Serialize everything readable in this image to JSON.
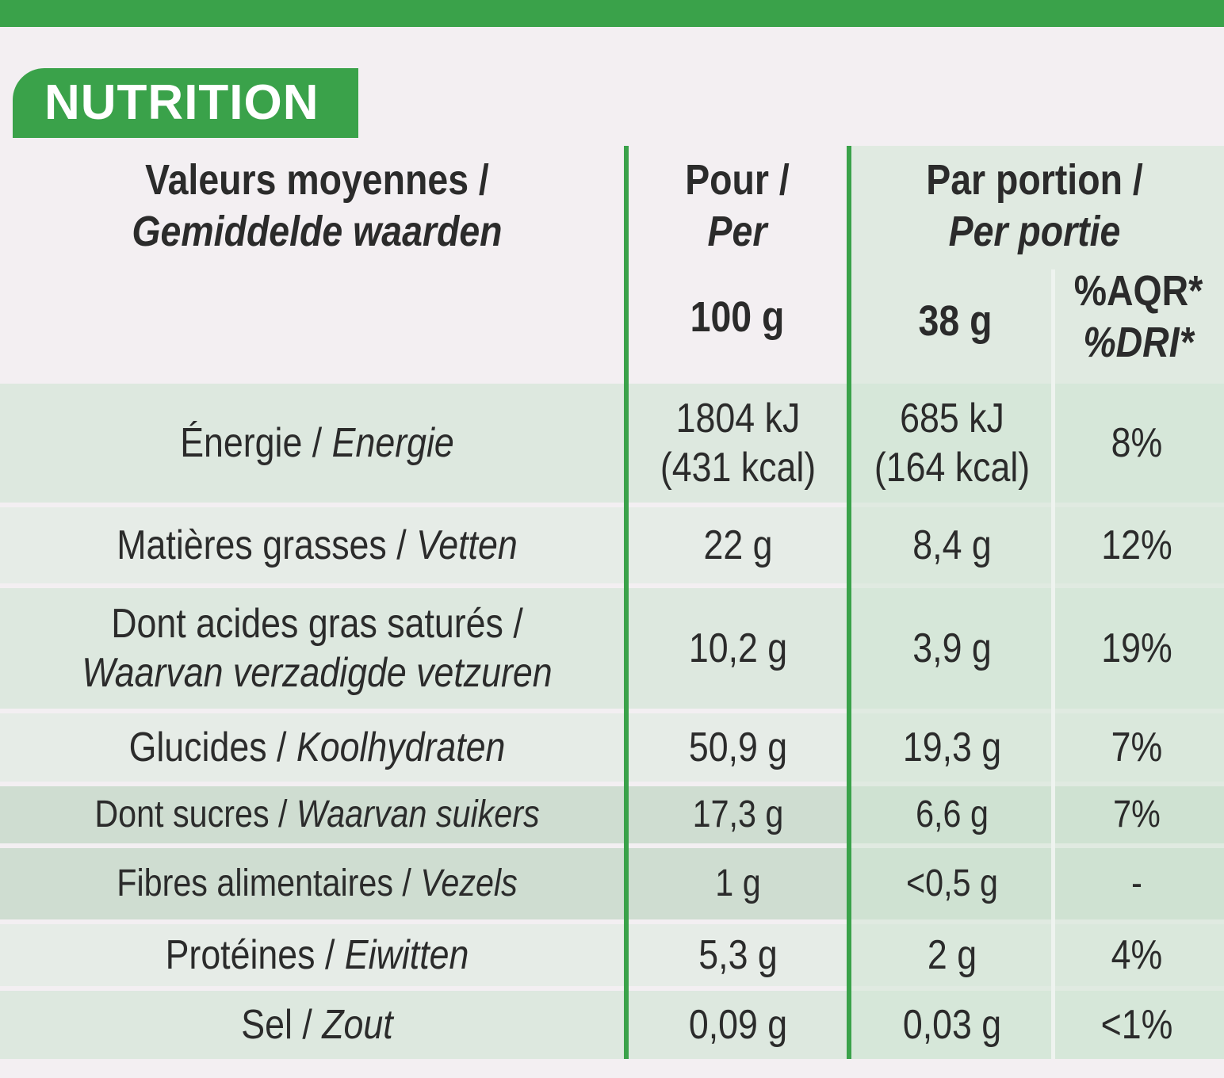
{
  "title": "NUTRITION",
  "header": {
    "col1_line1": "Valeurs moyennes /",
    "col1_line2": "Gemiddelde waarden",
    "col2_line1": "Pour /",
    "col2_line2": "Per",
    "col2_line3": "100 g",
    "col3_line1": "Par portion /",
    "col3_line2": "Per portie",
    "col3_portion": "38 g",
    "col4_line1": "%AQR*",
    "col4_line2": "%DRI*"
  },
  "rows": [
    {
      "fr": "Énergie /",
      "nl": "Energie",
      "per100_1": "1804 kJ",
      "per100_2": "(431 kcal)",
      "portion_1": "685 kJ",
      "portion_2": "(164 kcal)",
      "pct": "8%"
    },
    {
      "fr": "Matières grasses /",
      "nl": "Vetten",
      "per100": "22 g",
      "portion": "8,4 g",
      "pct": "12%"
    },
    {
      "fr": "Dont acides gras saturés /",
      "nl": "Waarvan verzadigde vetzuren",
      "per100": "10,2 g",
      "portion": "3,9 g",
      "pct": "19%"
    },
    {
      "fr": "Glucides /",
      "nl": "Koolhydraten",
      "per100": "50,9 g",
      "portion": "19,3 g",
      "pct": "7%"
    },
    {
      "fr": "Dont sucres /",
      "nl": "Waarvan suikers",
      "per100": "17,3 g",
      "portion": "6,6 g",
      "pct": "7%"
    },
    {
      "fr": "Fibres alimentaires /",
      "nl": "Vezels",
      "per100": "1 g",
      "portion": "<0,5 g",
      "pct": "-"
    },
    {
      "fr": "Protéines /",
      "nl": "Eiwitten",
      "per100": "5,3 g",
      "portion": "2 g",
      "pct": "4%"
    },
    {
      "fr": "Sel /",
      "nl": "Zout",
      "per100": "0,09 g",
      "portion": "0,03 g",
      "pct": "<1%"
    }
  ]
}
